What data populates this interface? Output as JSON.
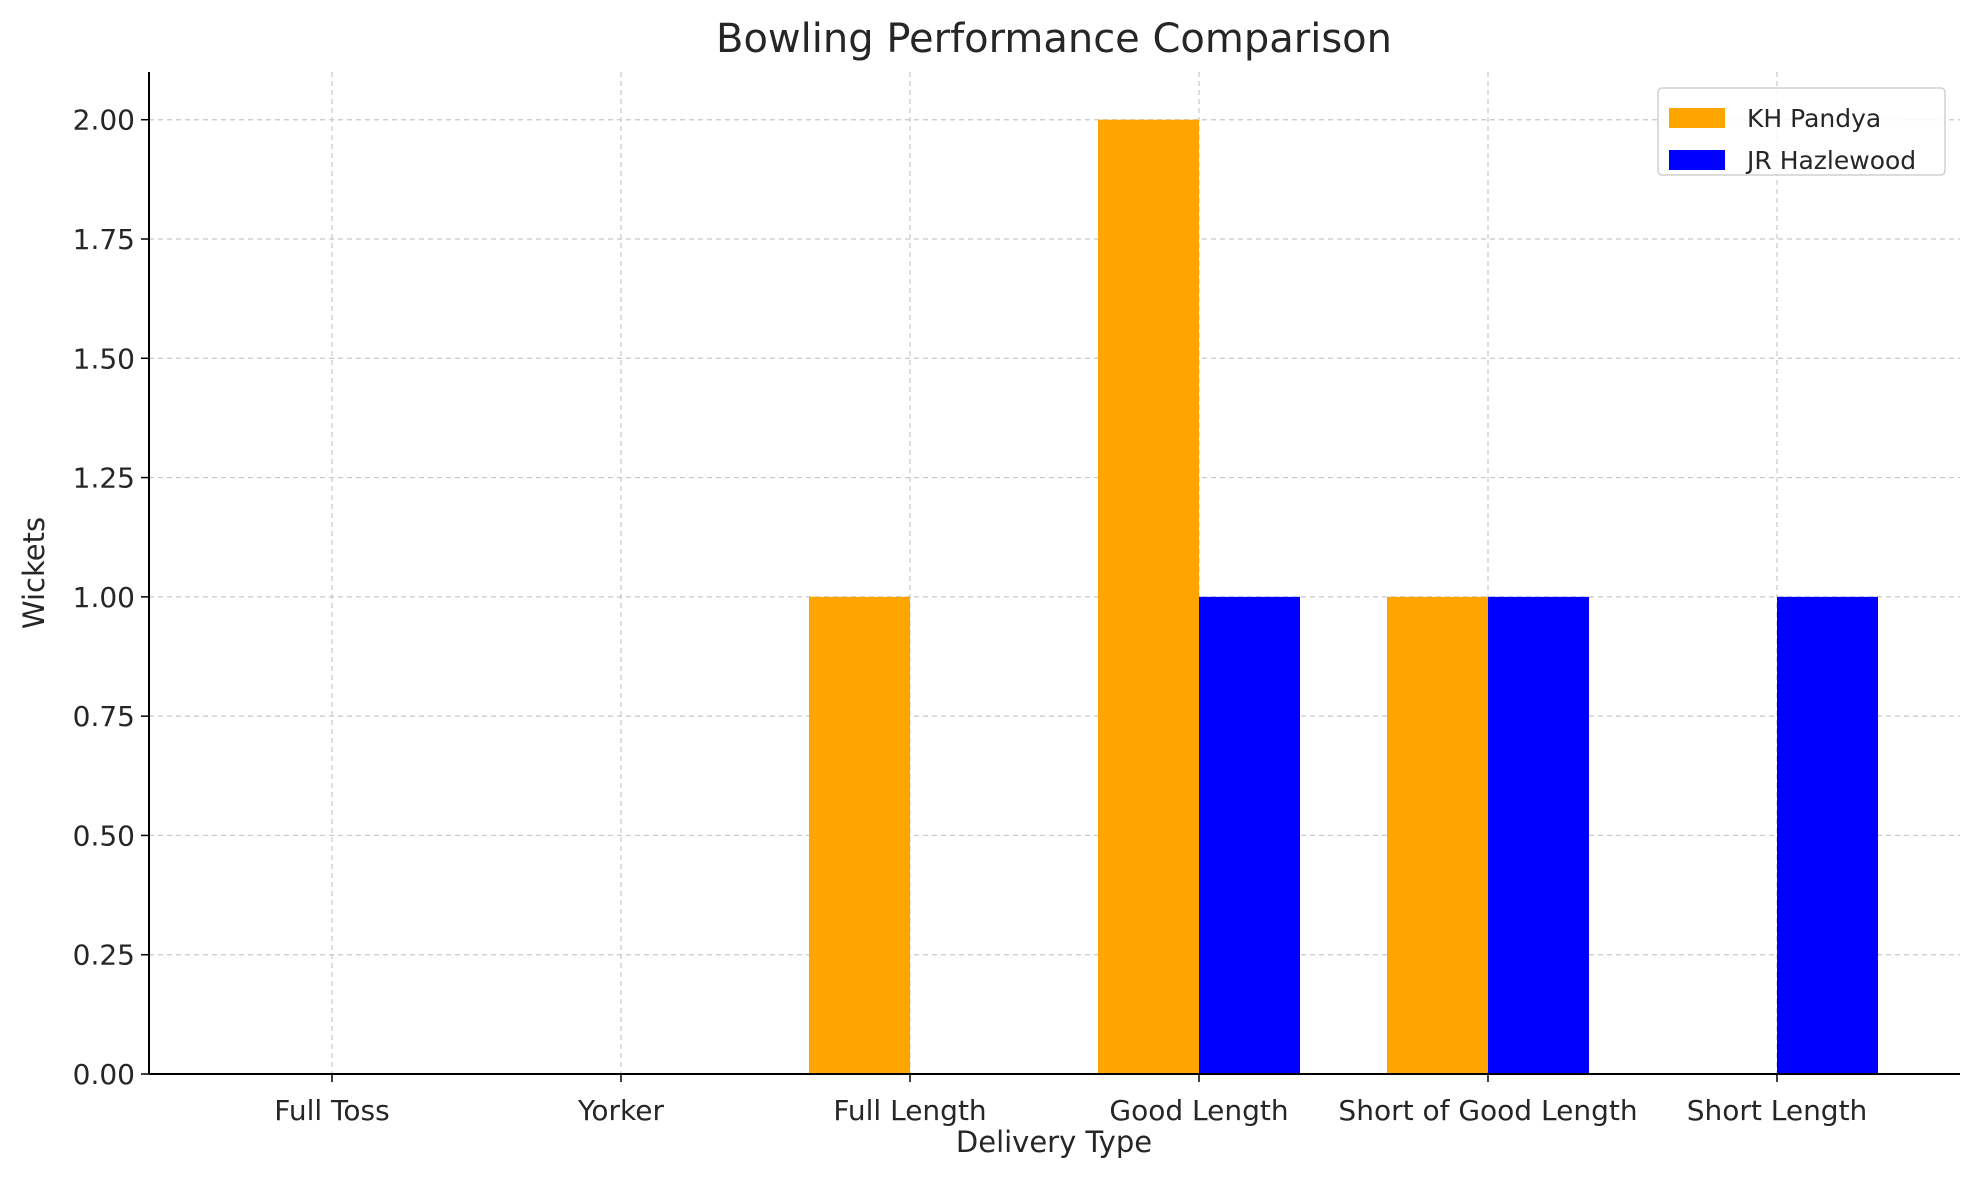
{
  "chart_data": {
    "type": "bar",
    "title": "Bowling Performance Comparison",
    "xlabel": "Delivery Type",
    "ylabel": "Wickets",
    "categories": [
      "Full Toss",
      "Yorker",
      "Full Length",
      "Good Length",
      "Short of Good Length",
      "Short Length"
    ],
    "series": [
      {
        "name": "KH Pandya",
        "color": "#FFA500",
        "values": [
          0,
          0,
          1,
          2,
          1,
          0
        ]
      },
      {
        "name": "JR Hazlewood",
        "color": "#0000FF",
        "values": [
          0,
          0,
          0,
          1,
          1,
          1
        ]
      }
    ],
    "ylim": [
      0,
      2.1
    ],
    "yticks": [
      "0.00",
      "0.25",
      "0.50",
      "0.75",
      "1.00",
      "1.25",
      "1.50",
      "1.75",
      "2.00"
    ],
    "grid": true,
    "legend_position": "top-right"
  }
}
